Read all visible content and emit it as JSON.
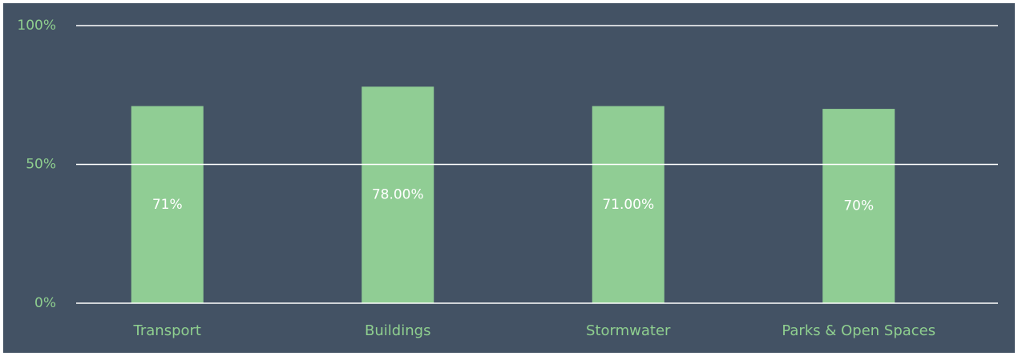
{
  "chart_data": {
    "type": "bar",
    "categories": [
      "Transport",
      "Buildings",
      "Stormwater",
      "Parks & Open Spaces"
    ],
    "values": [
      71,
      78,
      71,
      70
    ],
    "value_labels": [
      "71%",
      "78.00%",
      "71.00%",
      "70%"
    ],
    "color": "#90cd94",
    "ylim": [
      0,
      100
    ],
    "yticks": [
      {
        "value": 0,
        "label": "0%"
      },
      {
        "value": 50,
        "label": "50%"
      },
      {
        "value": 100,
        "label": "100%"
      }
    ],
    "grid": true
  }
}
